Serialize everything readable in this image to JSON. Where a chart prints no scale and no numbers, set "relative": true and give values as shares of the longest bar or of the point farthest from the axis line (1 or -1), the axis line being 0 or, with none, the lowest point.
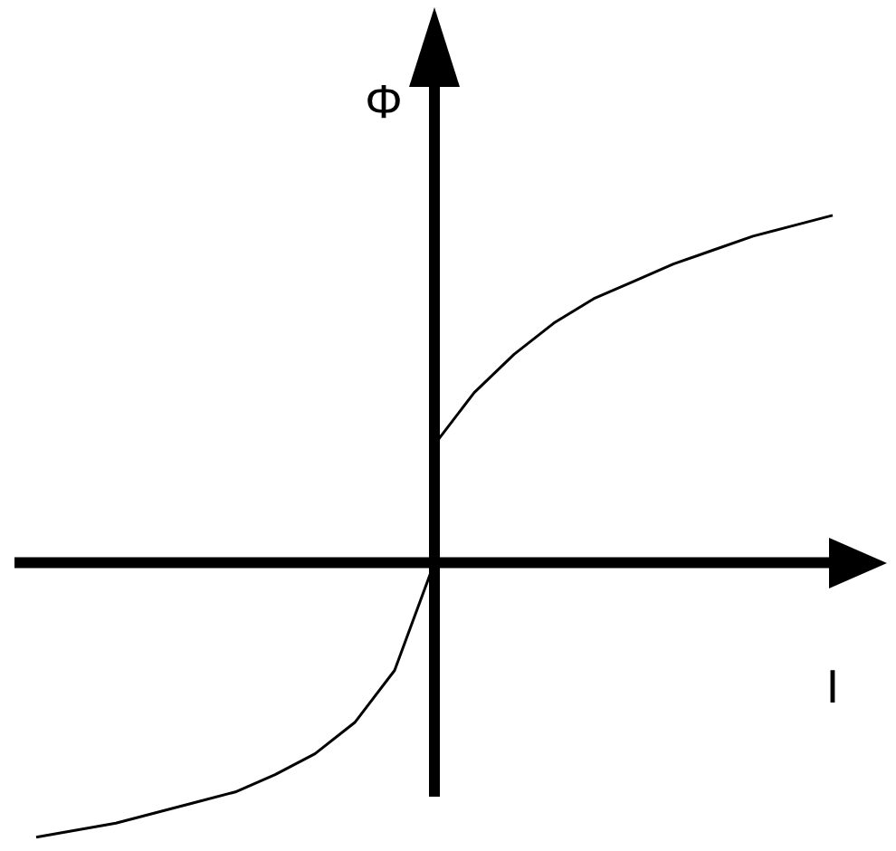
{
  "chart_data": {
    "type": "line",
    "relative": true,
    "xlabel": "I",
    "ylabel": "Φ",
    "legend": false,
    "marker": "none",
    "line_style": "solid",
    "categories": [
      null,
      null,
      null,
      null,
      null,
      null,
      null,
      null,
      null,
      null,
      null,
      null,
      null,
      null,
      null,
      null,
      null,
      null,
      null,
      null,
      null
    ],
    "series": [
      {
        "color": "#000000",
        "values": [
          -0.79,
          -0.77,
          -0.75,
          -0.72,
          -0.69,
          -0.66,
          -0.61,
          -0.55,
          -0.46,
          -0.31,
          0,
          null,
          null,
          null,
          null,
          null,
          null,
          null,
          null,
          null,
          null
        ]
      },
      {
        "color": "#000000",
        "values": [
          null,
          null,
          null,
          null,
          null,
          null,
          null,
          null,
          null,
          null,
          0.34,
          0.49,
          0.6,
          0.69,
          0.76,
          0.81,
          0.86,
          0.9,
          0.94,
          0.97,
          1
        ]
      }
    ]
  }
}
